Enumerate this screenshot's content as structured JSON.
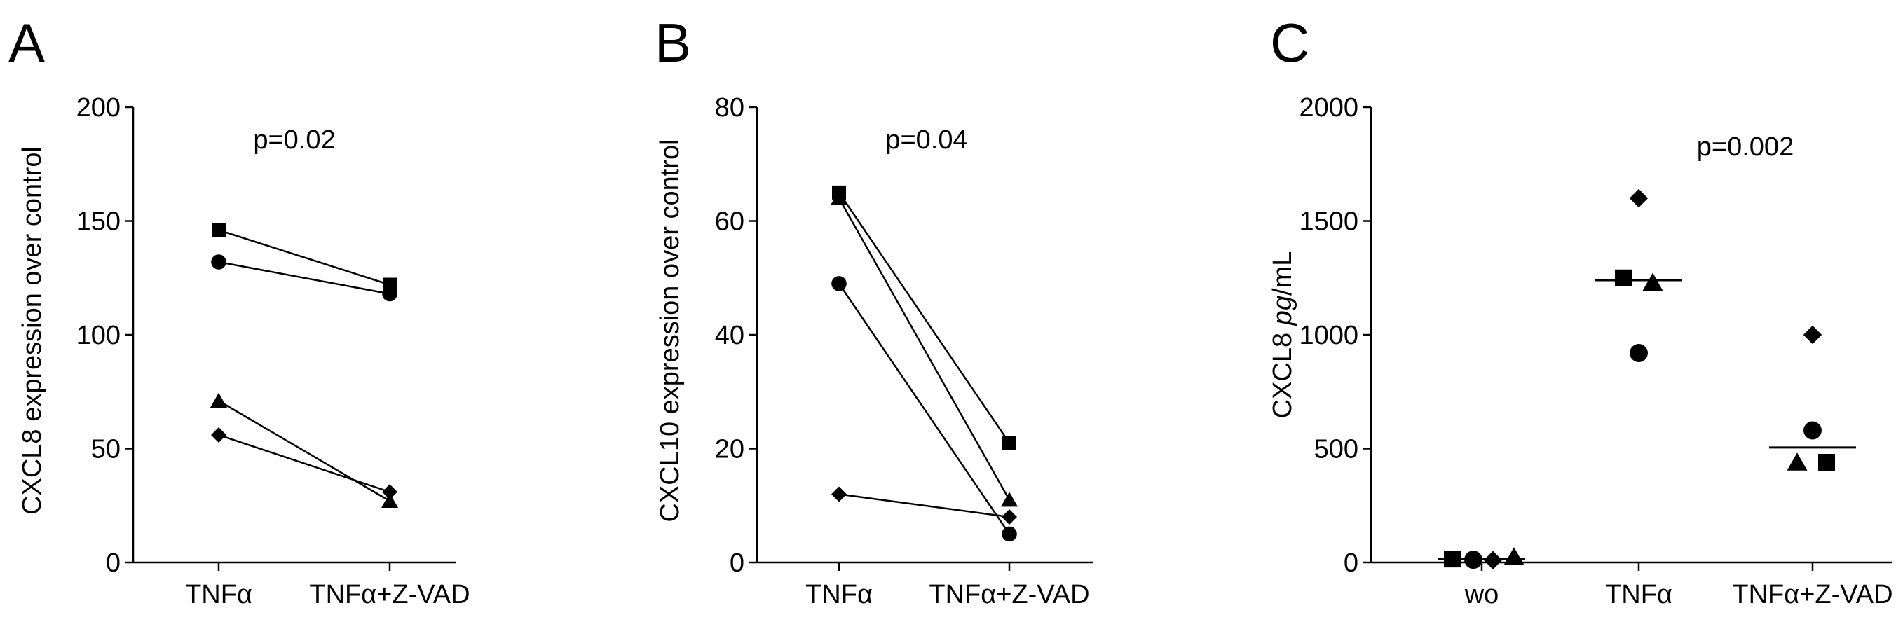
{
  "chart_data": [
    {
      "type": "line",
      "panel": "A",
      "categories": [
        "TNFα",
        "TNFα+Z-VAD"
      ],
      "ylabel": "CXCL8 expression over control",
      "ylim": [
        0,
        200
      ],
      "yticks": [
        0,
        50,
        100,
        150,
        200
      ],
      "annotation": "p=0.02",
      "series": [
        {
          "marker": "square",
          "values": [
            146,
            122
          ]
        },
        {
          "marker": "circle",
          "values": [
            132,
            118
          ]
        },
        {
          "marker": "triangle",
          "values": [
            71,
            27
          ]
        },
        {
          "marker": "diamond",
          "values": [
            56,
            31
          ]
        }
      ]
    },
    {
      "type": "line",
      "panel": "B",
      "categories": [
        "TNFα",
        "TNFα+Z-VAD"
      ],
      "ylabel": "CXCL10 expression over control",
      "ylim": [
        0,
        80
      ],
      "yticks": [
        0,
        20,
        40,
        60,
        80
      ],
      "annotation": "p=0.04",
      "series": [
        {
          "marker": "square",
          "values": [
            65,
            21
          ]
        },
        {
          "marker": "triangle",
          "values": [
            64,
            11
          ]
        },
        {
          "marker": "circle",
          "values": [
            49,
            5
          ]
        },
        {
          "marker": "diamond",
          "values": [
            12,
            8
          ]
        }
      ]
    },
    {
      "type": "scatter",
      "panel": "C",
      "categories": [
        "wo",
        "TNFα",
        "TNFα+Z-VAD"
      ],
      "ylabel_pre": "CXCL8 ",
      "ylabel_italic": "pg",
      "ylabel_post": "/mL",
      "ylim": [
        0,
        2000
      ],
      "yticks": [
        0,
        500,
        1000,
        1500,
        2000
      ],
      "annotation": "p=0.002",
      "groups": [
        {
          "category": "wo",
          "median": 15,
          "points": [
            {
              "marker": "square",
              "value": 15
            },
            {
              "marker": "circle",
              "value": 12
            },
            {
              "marker": "diamond",
              "value": 10
            },
            {
              "marker": "triangle",
              "value": 25
            }
          ]
        },
        {
          "category": "TNFα",
          "median": 1240,
          "points": [
            {
              "marker": "diamond",
              "value": 1600
            },
            {
              "marker": "square",
              "value": 1250
            },
            {
              "marker": "triangle",
              "value": 1230
            },
            {
              "marker": "circle",
              "value": 920
            }
          ]
        },
        {
          "category": "TNFα+Z-VAD",
          "median": 505,
          "points": [
            {
              "marker": "diamond",
              "value": 1000
            },
            {
              "marker": "circle",
              "value": 580
            },
            {
              "marker": "triangle",
              "value": 440
            },
            {
              "marker": "square",
              "value": 440
            }
          ]
        }
      ]
    }
  ]
}
